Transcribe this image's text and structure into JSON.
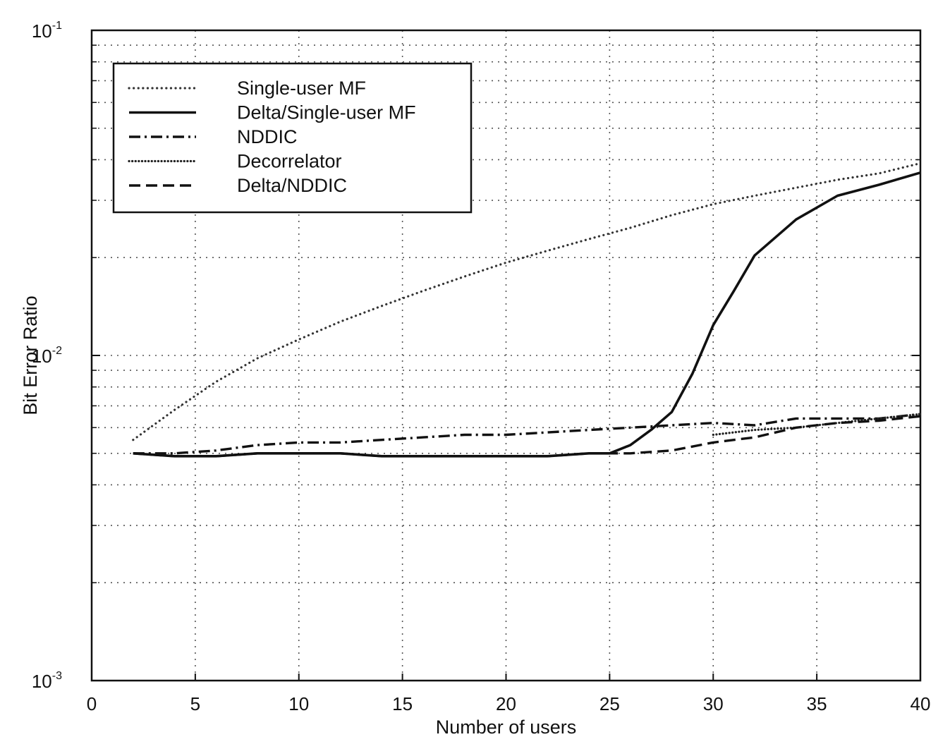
{
  "chart_data": {
    "type": "line",
    "title": "",
    "xlabel": "Number of users",
    "ylabel": "Bit Error Ratio",
    "xlim": [
      0,
      40
    ],
    "ylim": [
      0.001,
      0.1
    ],
    "yscale": "log",
    "grid": true,
    "legend_position": "top-left",
    "x_ticks": [
      "0",
      "5",
      "10",
      "15",
      "20",
      "25",
      "30",
      "35",
      "40"
    ],
    "y_ticks": [
      {
        "base": "10",
        "exp": "-1",
        "value": 0.1
      },
      {
        "base": "10",
        "exp": "-2",
        "value": 0.01
      },
      {
        "base": "10",
        "exp": "-3",
        "value": 0.001
      }
    ],
    "series": [
      {
        "name": "Single-user MF",
        "style": "dotted",
        "x": [
          2,
          4,
          6,
          8,
          10,
          12,
          14,
          16,
          18,
          20,
          22,
          24,
          26,
          28,
          30,
          32,
          34,
          36,
          38,
          40
        ],
        "y": [
          0.0055,
          0.0068,
          0.0083,
          0.0098,
          0.0112,
          0.0127,
          0.0142,
          0.0158,
          0.0175,
          0.0193,
          0.021,
          0.0228,
          0.0247,
          0.027,
          0.0292,
          0.031,
          0.0328,
          0.0347,
          0.0363,
          0.039
        ]
      },
      {
        "name": "Delta/Single-user MF",
        "style": "solid",
        "x": [
          2,
          4,
          6,
          8,
          10,
          12,
          14,
          16,
          18,
          20,
          22,
          24,
          25,
          26,
          27,
          28,
          29,
          30,
          31,
          32,
          34,
          36,
          38,
          40
        ],
        "y": [
          0.005,
          0.0049,
          0.0049,
          0.005,
          0.005,
          0.005,
          0.0049,
          0.0049,
          0.0049,
          0.0049,
          0.0049,
          0.005,
          0.005,
          0.0053,
          0.0059,
          0.0067,
          0.0088,
          0.0124,
          0.0158,
          0.0203,
          0.0262,
          0.031,
          0.0335,
          0.0365
        ]
      },
      {
        "name": "NDDIC",
        "style": "dashdot",
        "x": [
          2,
          4,
          6,
          8,
          10,
          12,
          14,
          16,
          18,
          20,
          22,
          24,
          26,
          28,
          30,
          32,
          34,
          36,
          38,
          40
        ],
        "y": [
          0.005,
          0.005,
          0.0051,
          0.0053,
          0.0054,
          0.0054,
          0.0055,
          0.0056,
          0.0057,
          0.0057,
          0.0058,
          0.0059,
          0.006,
          0.0061,
          0.0062,
          0.0061,
          0.0064,
          0.0064,
          0.0064,
          0.0066
        ]
      },
      {
        "name": "Decorrelator",
        "style": "densedot",
        "x": [
          30,
          32,
          34,
          36,
          38,
          40
        ],
        "y": [
          0.0057,
          0.0059,
          0.006,
          0.0062,
          0.0064,
          0.0066
        ]
      },
      {
        "name": "Delta/NDDIC",
        "style": "dashed",
        "x": [
          2,
          4,
          6,
          8,
          10,
          12,
          14,
          16,
          18,
          20,
          22,
          24,
          25,
          26,
          28,
          30,
          32,
          34,
          36,
          38,
          40
        ],
        "y": [
          0.005,
          0.0049,
          0.0049,
          0.005,
          0.005,
          0.005,
          0.0049,
          0.0049,
          0.0049,
          0.0049,
          0.0049,
          0.005,
          0.005,
          0.005,
          0.0051,
          0.0054,
          0.0056,
          0.006,
          0.0062,
          0.0063,
          0.0065
        ]
      }
    ]
  }
}
